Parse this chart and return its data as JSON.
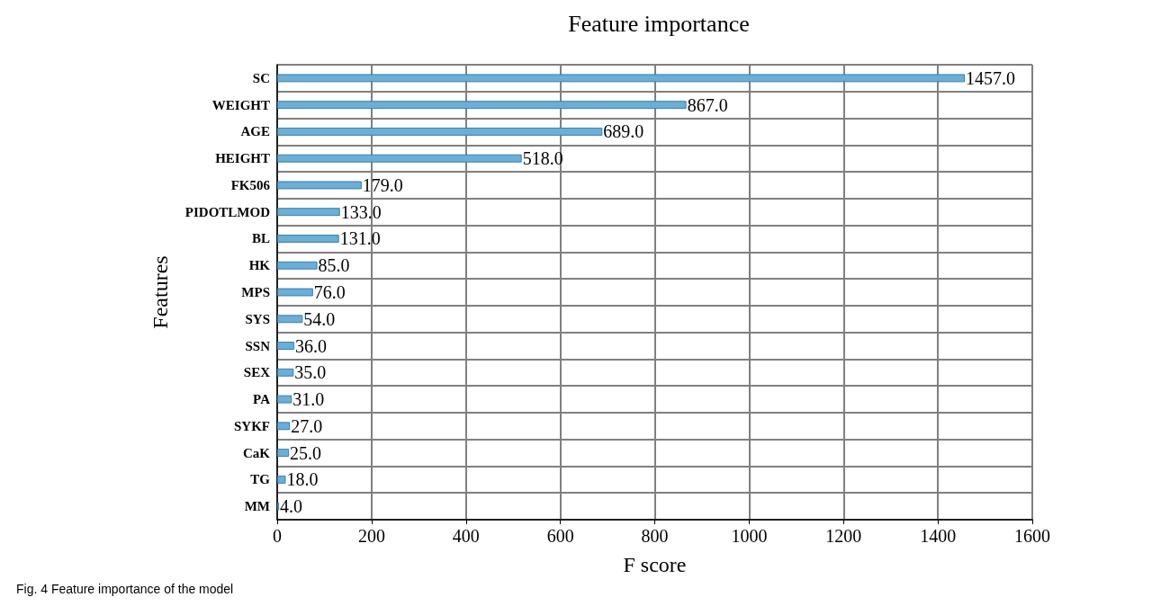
{
  "chart_data": {
    "type": "bar",
    "orientation": "horizontal",
    "title": "Feature importance",
    "xlabel": "F score",
    "ylabel": "Features",
    "categories": [
      "SC",
      "WEIGHT",
      "AGE",
      "HEIGHT",
      "FK506",
      "PIDOTLMOD",
      "BL",
      "HK",
      "MPS",
      "SYS",
      "SSN",
      "SEX",
      "PA",
      "SYKF",
      "CaK",
      "TG",
      "MM"
    ],
    "values": [
      1457,
      867,
      689,
      518,
      179,
      133,
      131,
      85,
      76,
      54,
      36,
      35,
      31,
      27,
      25,
      18,
      4
    ],
    "value_labels": [
      "1457.0",
      "867.0",
      "689.0",
      "518.0",
      "179.0",
      "133.0",
      "131.0",
      "85.0",
      "76.0",
      "54.0",
      "36.0",
      "35.0",
      "31.0",
      "27.0",
      "25.0",
      "18.0",
      "4.0"
    ],
    "color": "#6baed6",
    "xlim": [
      0,
      1600
    ],
    "xticks": [
      0,
      200,
      400,
      600,
      800,
      1000,
      1200,
      1400,
      1600
    ],
    "grid": true,
    "annotations": [
      "Fig. 4 Feature importance of the model"
    ]
  }
}
